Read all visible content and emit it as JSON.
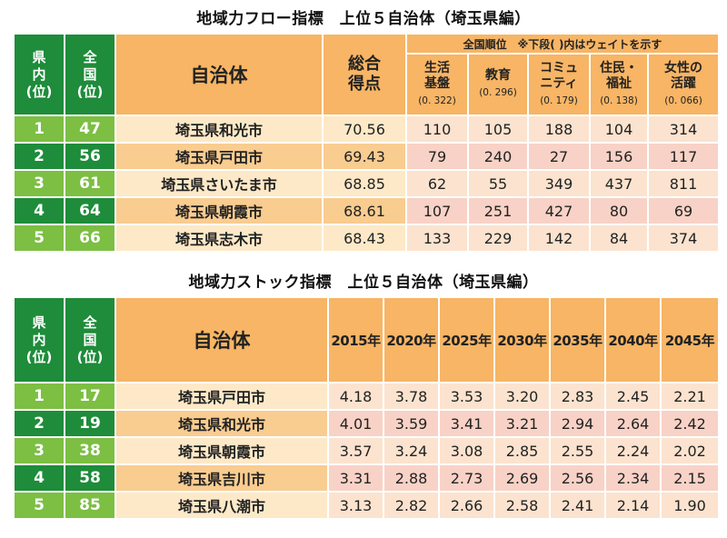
{
  "flow": {
    "title": "地域力フロー指標　上位５自治体（埼玉県編）",
    "headers": {
      "pref_rank": "県\n内\n(位)",
      "nat_rank": "全\n国\n(位)",
      "municipality": "自治体",
      "total": "総合\n得点",
      "sub_span": "全国順位　※下段( )内はウェイトを示す"
    },
    "subcats": [
      {
        "name": "生活\n基盤",
        "weight": "(0. 322)"
      },
      {
        "name": "教育",
        "weight": "(0. 296)"
      },
      {
        "name": "コミュ\nニティ",
        "weight": "(0. 179)"
      },
      {
        "name": "住民・\n福祉",
        "weight": "(0. 138)"
      },
      {
        "name": "女性の\n活躍",
        "weight": "(0. 066)"
      }
    ],
    "rows": [
      {
        "pref": "1",
        "nat": "47",
        "name": "埼玉県和光市",
        "total": "70.56",
        "ranks": [
          "110",
          "105",
          "188",
          "104",
          "314"
        ]
      },
      {
        "pref": "2",
        "nat": "56",
        "name": "埼玉県戸田市",
        "total": "69.43",
        "ranks": [
          "79",
          "240",
          "27",
          "156",
          "117"
        ]
      },
      {
        "pref": "3",
        "nat": "61",
        "name": "埼玉県さいたま市",
        "total": "68.85",
        "ranks": [
          "62",
          "55",
          "349",
          "437",
          "811"
        ]
      },
      {
        "pref": "4",
        "nat": "64",
        "name": "埼玉県朝霞市",
        "total": "68.61",
        "ranks": [
          "107",
          "251",
          "427",
          "80",
          "69"
        ]
      },
      {
        "pref": "5",
        "nat": "66",
        "name": "埼玉県志木市",
        "total": "68.43",
        "ranks": [
          "133",
          "229",
          "142",
          "84",
          "374"
        ]
      }
    ]
  },
  "stock": {
    "title": "地域力ストック指標　上位５自治体（埼玉県編）",
    "headers": {
      "pref_rank": "県\n内\n(位)",
      "nat_rank": "全\n国\n(位)",
      "municipality": "自治体"
    },
    "years": [
      "2015年",
      "2020年",
      "2025年",
      "2030年",
      "2035年",
      "2040年",
      "2045年"
    ],
    "rows": [
      {
        "pref": "1",
        "nat": "17",
        "name": "埼玉県戸田市",
        "values": [
          "4.18",
          "3.78",
          "3.53",
          "3.20",
          "2.83",
          "2.45",
          "2.21"
        ]
      },
      {
        "pref": "2",
        "nat": "19",
        "name": "埼玉県和光市",
        "values": [
          "4.01",
          "3.59",
          "3.41",
          "3.21",
          "2.94",
          "2.64",
          "2.42"
        ]
      },
      {
        "pref": "3",
        "nat": "38",
        "name": "埼玉県朝霞市",
        "values": [
          "3.57",
          "3.24",
          "3.08",
          "2.85",
          "2.55",
          "2.24",
          "2.02"
        ]
      },
      {
        "pref": "4",
        "nat": "58",
        "name": "埼玉県吉川市",
        "values": [
          "3.31",
          "2.88",
          "2.73",
          "2.69",
          "2.56",
          "2.34",
          "2.15"
        ]
      },
      {
        "pref": "5",
        "nat": "85",
        "name": "埼玉県八潮市",
        "values": [
          "3.13",
          "2.82",
          "2.66",
          "2.58",
          "2.41",
          "2.14",
          "1.90"
        ]
      }
    ]
  }
}
